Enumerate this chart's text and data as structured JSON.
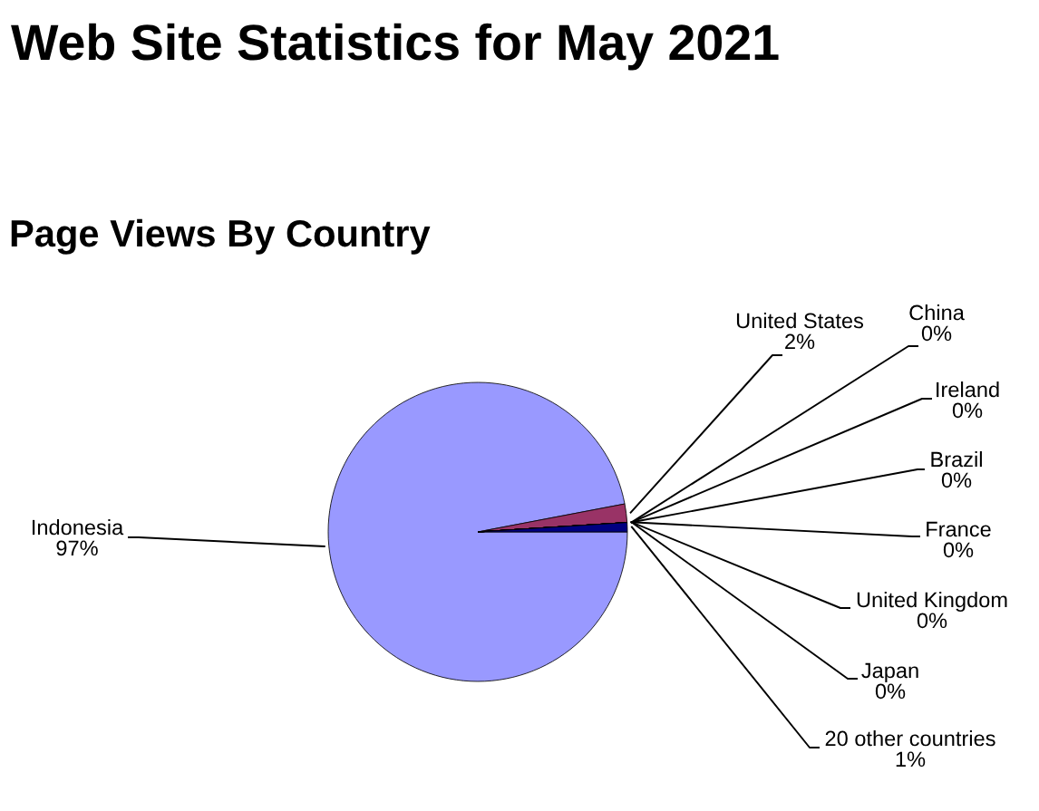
{
  "chart_data": {
    "type": "pie",
    "title": "Web Site Statistics for May 2021",
    "subtitle": "Page Views By Country",
    "categories": [
      "Indonesia",
      "United States",
      "China",
      "Ireland",
      "Brazil",
      "France",
      "United Kingdom",
      "Japan",
      "20 other countries"
    ],
    "values": [
      97,
      2,
      0,
      0,
      0,
      0,
      0,
      0,
      1
    ],
    "value_labels": [
      "97%",
      "2%",
      "0%",
      "0%",
      "0%",
      "0%",
      "0%",
      "0%",
      "1%"
    ],
    "colors": [
      "#9999ff",
      "#993366",
      "#ffffcc",
      "#ccffff",
      "#660066",
      "#ff8080",
      "#0066cc",
      "#ccccff",
      "#000080"
    ]
  }
}
